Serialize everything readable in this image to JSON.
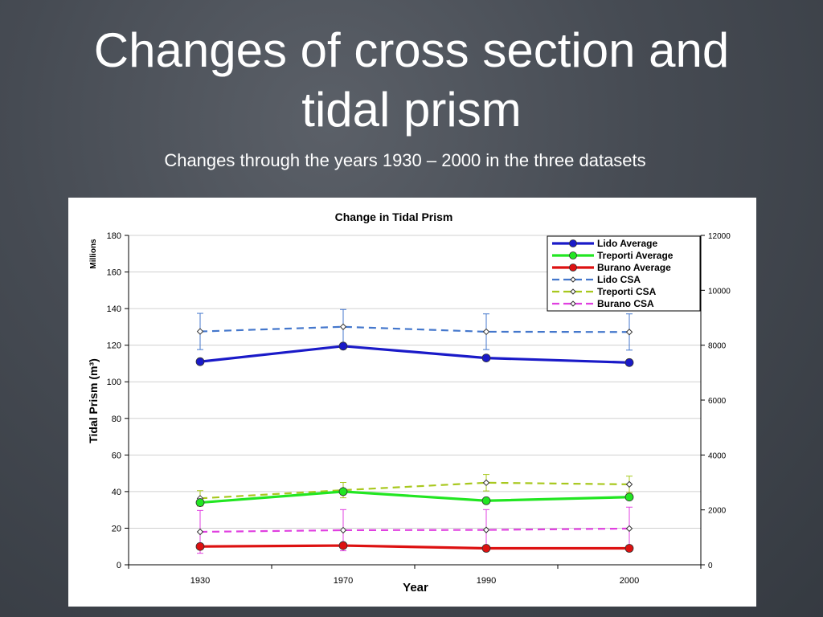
{
  "slide": {
    "title": "Changes of cross section and\ntidal prism",
    "subtitle": "Changes through the years 1930 – 2000 in the three datasets"
  },
  "chart_data": {
    "type": "line",
    "title": "Change in Tidal Prism",
    "xlabel": "Year",
    "ylabel": "Tidal Prism (m³)",
    "y_unit_label": "Millions",
    "ylim": [
      0,
      180
    ],
    "y_ticks": [
      0,
      20,
      40,
      60,
      80,
      100,
      120,
      140,
      160,
      180
    ],
    "y2lim": [
      0,
      12000
    ],
    "y2_ticks": [
      0,
      2000,
      4000,
      6000,
      8000,
      10000,
      12000
    ],
    "x": [
      "1930",
      "1970",
      "1990",
      "2000"
    ],
    "grid": "horizontal",
    "legend_position": "top-right",
    "series": [
      {
        "name": "Lido Average",
        "axis": "left",
        "color": "#1a1ac8",
        "style": "solid",
        "marker": "circle",
        "values": [
          111,
          119.5,
          113,
          110.5
        ]
      },
      {
        "name": "Treporti Average",
        "axis": "left",
        "color": "#22e622",
        "style": "solid",
        "marker": "circle",
        "values": [
          34,
          40,
          35,
          37
        ]
      },
      {
        "name": "Burano Average",
        "axis": "left",
        "color": "#dd1111",
        "style": "solid",
        "marker": "circle",
        "values": [
          10,
          10.5,
          9,
          9
        ]
      },
      {
        "name": "Lido CSA",
        "axis": "right",
        "color": "#4477cc",
        "style": "dashed",
        "marker": "diamond",
        "values": [
          8500,
          8670,
          8490,
          8480
        ],
        "errors": [
          660,
          630,
          650,
          660
        ]
      },
      {
        "name": "Treporti CSA",
        "axis": "right",
        "color": "#a8c81e",
        "style": "dashed",
        "marker": "diamond",
        "values": [
          2420,
          2720,
          2990,
          2930
        ],
        "errors": [
          280,
          280,
          300,
          300
        ]
      },
      {
        "name": "Burano CSA",
        "axis": "right",
        "color": "#e040e0",
        "style": "dashed",
        "marker": "diamond",
        "values": [
          1200,
          1260,
          1270,
          1320
        ],
        "errors": [
          780,
          750,
          740,
          780
        ]
      }
    ]
  }
}
